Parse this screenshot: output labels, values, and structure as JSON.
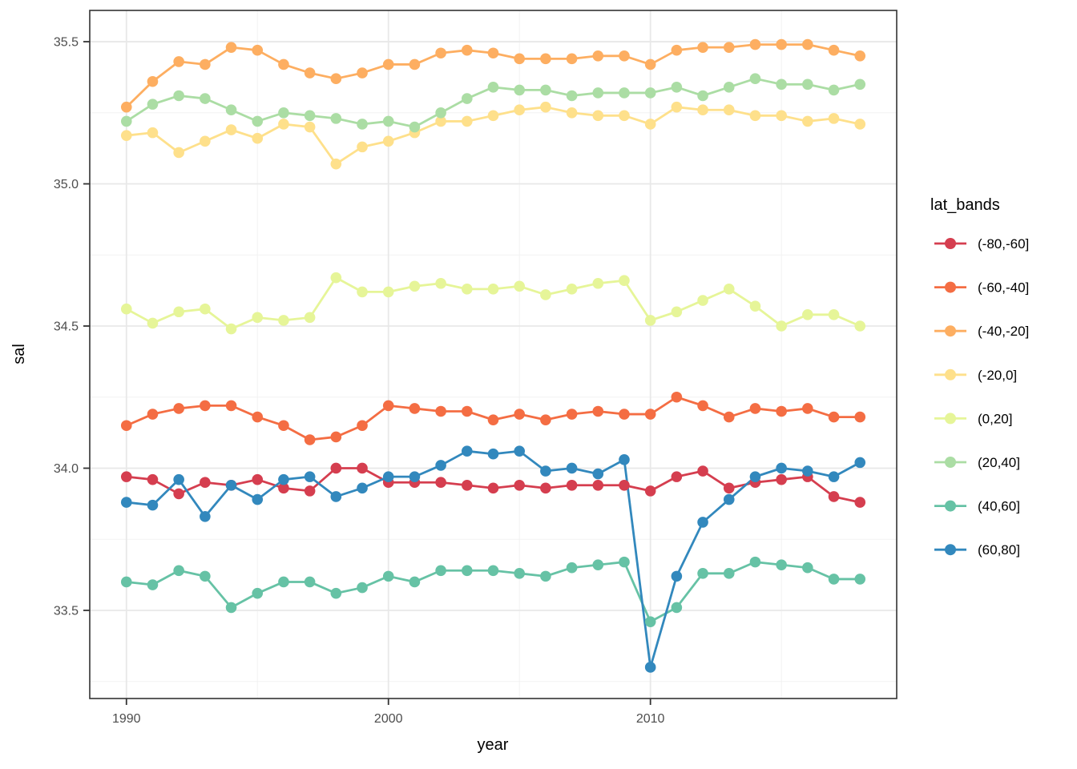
{
  "chart_data": {
    "type": "line",
    "title": "",
    "xlabel": "year",
    "ylabel": "sal",
    "legend_title": "lat_bands",
    "legend_position": "right",
    "grid": true,
    "x": [
      1990,
      1991,
      1992,
      1993,
      1994,
      1995,
      1996,
      1997,
      1998,
      1999,
      2000,
      2001,
      2002,
      2003,
      2004,
      2005,
      2006,
      2007,
      2008,
      2009,
      2010,
      2011,
      2012,
      2013,
      2014,
      2015,
      2016,
      2017,
      2018
    ],
    "xlim": [
      1988.6,
      2019.4
    ],
    "ylim": [
      33.19,
      35.61
    ],
    "xticks": [
      {
        "value": 1990,
        "label": "1990"
      },
      {
        "value": 2000,
        "label": "2000"
      },
      {
        "value": 2010,
        "label": "2010"
      }
    ],
    "yticks": [
      {
        "value": 33.5,
        "label": "33.5"
      },
      {
        "value": 34.0,
        "label": "34.0"
      },
      {
        "value": 34.5,
        "label": "34.5"
      },
      {
        "value": 35.0,
        "label": "35.0"
      },
      {
        "value": 35.5,
        "label": "35.5"
      }
    ],
    "series": [
      {
        "name": "(-80,-60]",
        "color": "#d53e4f",
        "values": [
          33.97,
          33.96,
          33.91,
          33.95,
          33.94,
          33.96,
          33.93,
          33.92,
          34.0,
          34.0,
          33.95,
          33.95,
          33.95,
          33.94,
          33.93,
          33.94,
          33.93,
          33.94,
          33.94,
          33.94,
          33.92,
          33.97,
          33.99,
          33.93,
          33.95,
          33.96,
          33.97,
          33.9,
          33.88
        ]
      },
      {
        "name": "(-60,-40]",
        "color": "#f46d43",
        "values": [
          34.15,
          34.19,
          34.21,
          34.22,
          34.22,
          34.18,
          34.15,
          34.1,
          34.11,
          34.15,
          34.22,
          34.21,
          34.2,
          34.2,
          34.17,
          34.19,
          34.17,
          34.19,
          34.2,
          34.19,
          34.19,
          34.25,
          34.22,
          34.18,
          34.21,
          34.2,
          34.21,
          34.18,
          34.18
        ]
      },
      {
        "name": "(-40,-20]",
        "color": "#fdae61",
        "values": [
          35.27,
          35.36,
          35.43,
          35.42,
          35.48,
          35.47,
          35.42,
          35.39,
          35.37,
          35.39,
          35.42,
          35.42,
          35.46,
          35.47,
          35.46,
          35.44,
          35.44,
          35.44,
          35.45,
          35.45,
          35.42,
          35.47,
          35.48,
          35.48,
          35.49,
          35.49,
          35.49,
          35.47,
          35.45
        ]
      },
      {
        "name": "(-20,0]",
        "color": "#fee08b",
        "values": [
          35.17,
          35.18,
          35.11,
          35.15,
          35.19,
          35.16,
          35.21,
          35.2,
          35.07,
          35.13,
          35.15,
          35.18,
          35.22,
          35.22,
          35.24,
          35.26,
          35.27,
          35.25,
          35.24,
          35.24,
          35.21,
          35.27,
          35.26,
          35.26,
          35.24,
          35.24,
          35.22,
          35.23,
          35.21
        ]
      },
      {
        "name": "(0,20]",
        "color": "#e6f598",
        "values": [
          34.56,
          34.51,
          34.55,
          34.56,
          34.49,
          34.53,
          34.52,
          34.53,
          34.67,
          34.62,
          34.62,
          34.64,
          34.65,
          34.63,
          34.63,
          34.64,
          34.61,
          34.63,
          34.65,
          34.66,
          34.52,
          34.55,
          34.59,
          34.63,
          34.57,
          34.5,
          34.54,
          34.54,
          34.5
        ]
      },
      {
        "name": "(20,40]",
        "color": "#abdda4",
        "values": [
          35.22,
          35.28,
          35.31,
          35.3,
          35.26,
          35.22,
          35.25,
          35.24,
          35.23,
          35.21,
          35.22,
          35.2,
          35.25,
          35.3,
          35.34,
          35.33,
          35.33,
          35.31,
          35.32,
          35.32,
          35.32,
          35.34,
          35.31,
          35.34,
          35.37,
          35.35,
          35.35,
          35.33,
          35.35
        ]
      },
      {
        "name": "(40,60]",
        "color": "#66c2a5",
        "values": [
          33.6,
          33.59,
          33.64,
          33.62,
          33.51,
          33.56,
          33.6,
          33.6,
          33.56,
          33.58,
          33.62,
          33.6,
          33.64,
          33.64,
          33.64,
          33.63,
          33.62,
          33.65,
          33.66,
          33.67,
          33.46,
          33.51,
          33.63,
          33.63,
          33.67,
          33.66,
          33.65,
          33.61,
          33.61
        ]
      },
      {
        "name": "(60,80]",
        "color": "#3288bd",
        "values": [
          33.88,
          33.87,
          33.96,
          33.83,
          33.94,
          33.89,
          33.96,
          33.97,
          33.9,
          33.93,
          33.97,
          33.97,
          34.01,
          34.06,
          34.05,
          34.06,
          33.99,
          34.0,
          33.98,
          34.03,
          33.3,
          33.62,
          33.81,
          33.89,
          33.97,
          34.0,
          33.99,
          33.97,
          34.02
        ]
      }
    ]
  },
  "colors": {
    "background": "#ffffff",
    "panel_background": "#ffffff",
    "panel_border": "#333333",
    "grid_major": "#e8e8e8",
    "grid_minor": "#f2f2f2",
    "tick_mark": "#333333",
    "tick_label": "#4d4d4d",
    "axis_title": "#000000",
    "legend_text": "#000000"
  }
}
